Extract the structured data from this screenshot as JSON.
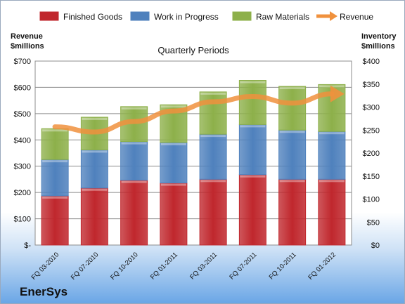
{
  "company": "EnerSys",
  "chart_data": {
    "type": "bar",
    "stacked": true,
    "title": "Quarterly Periods",
    "categories": [
      "FQ 03-2010",
      "FQ 07-2010",
      "FQ 10-2010",
      "FQ 01-2011",
      "FQ 03-2011",
      "FQ 07-2011",
      "FQ 10-2011",
      "FQ 01-2012"
    ],
    "left_axis": {
      "label_line1": "Revenue",
      "label_line2": "$millions",
      "ylim": [
        0,
        700
      ],
      "ticks": [
        0,
        100,
        200,
        300,
        400,
        500,
        600,
        700
      ],
      "tick_labels": [
        "$-",
        "$100",
        "$200",
        "$300",
        "$400",
        "$500",
        "$600",
        "$700"
      ]
    },
    "right_axis": {
      "label_line1": "Inventory",
      "label_line2": "$millions",
      "ylim": [
        0,
        400
      ],
      "ticks": [
        0,
        50,
        100,
        150,
        200,
        250,
        300,
        350,
        400
      ],
      "tick_labels": [
        "$0",
        "$50",
        "$100",
        "$150",
        "$200",
        "$250",
        "$300",
        "$350",
        "$400"
      ]
    },
    "series": [
      {
        "name": "Finished Goods",
        "axis": "right",
        "kind": "bar",
        "color": "#c0272d",
        "values": [
          107,
          124,
          141,
          135,
          143,
          153,
          143,
          143
        ]
      },
      {
        "name": "Work in Progress",
        "axis": "right",
        "kind": "bar",
        "color": "#4f81bd",
        "values": [
          79,
          83,
          84,
          88,
          98,
          109,
          107,
          104
        ]
      },
      {
        "name": "Raw Materials",
        "axis": "right",
        "kind": "bar",
        "color": "#8db04a",
        "values": [
          67,
          71,
          76,
          82,
          92,
          96,
          95,
          102
        ]
      },
      {
        "name": "Revenue",
        "axis": "left",
        "kind": "line",
        "color": "#f0913d",
        "values": [
          450,
          430,
          470,
          510,
          545,
          565,
          540,
          575
        ]
      }
    ],
    "grid": true,
    "legend": "top"
  }
}
